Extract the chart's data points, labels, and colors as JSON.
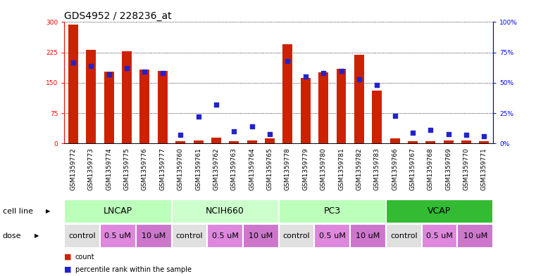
{
  "title": "GDS4952 / 228236_at",
  "samples": [
    "GSM1359772",
    "GSM1359773",
    "GSM1359774",
    "GSM1359775",
    "GSM1359776",
    "GSM1359777",
    "GSM1359760",
    "GSM1359761",
    "GSM1359762",
    "GSM1359763",
    "GSM1359764",
    "GSM1359765",
    "GSM1359778",
    "GSM1359779",
    "GSM1359780",
    "GSM1359781",
    "GSM1359782",
    "GSM1359783",
    "GSM1359766",
    "GSM1359767",
    "GSM1359768",
    "GSM1359769",
    "GSM1359770",
    "GSM1359771"
  ],
  "counts": [
    293,
    232,
    178,
    228,
    182,
    180,
    5,
    8,
    15,
    5,
    8,
    12,
    246,
    162,
    175,
    185,
    220,
    130,
    12,
    5,
    6,
    8,
    7,
    5
  ],
  "percentiles": [
    67,
    64,
    57,
    62,
    59,
    58,
    7,
    22,
    32,
    10,
    14,
    8,
    68,
    55,
    58,
    60,
    53,
    48,
    23,
    9,
    11,
    8,
    7,
    6
  ],
  "cell_lines": [
    {
      "label": "LNCAP",
      "start": 0,
      "end": 6,
      "color": "#bbffbb"
    },
    {
      "label": "NCIH660",
      "start": 6,
      "end": 12,
      "color": "#ccffcc"
    },
    {
      "label": "PC3",
      "start": 12,
      "end": 18,
      "color": "#bbffbb"
    },
    {
      "label": "VCAP",
      "start": 18,
      "end": 24,
      "color": "#33bb33"
    }
  ],
  "doses": [
    {
      "label": "control",
      "start": 0,
      "end": 2,
      "color": "#e8e8e8"
    },
    {
      "label": "0.5 uM",
      "start": 2,
      "end": 4,
      "color": "#dd88dd"
    },
    {
      "label": "10 uM",
      "start": 4,
      "end": 6,
      "color": "#dd88dd"
    },
    {
      "label": "control",
      "start": 6,
      "end": 8,
      "color": "#e8e8e8"
    },
    {
      "label": "0.5 uM",
      "start": 8,
      "end": 10,
      "color": "#dd88dd"
    },
    {
      "label": "10 uM",
      "start": 10,
      "end": 12,
      "color": "#dd88dd"
    },
    {
      "label": "control",
      "start": 12,
      "end": 14,
      "color": "#e8e8e8"
    },
    {
      "label": "0.5 uM",
      "start": 14,
      "end": 16,
      "color": "#dd88dd"
    },
    {
      "label": "10 uM",
      "start": 16,
      "end": 18,
      "color": "#dd88dd"
    },
    {
      "label": "control",
      "start": 18,
      "end": 20,
      "color": "#e8e8e8"
    },
    {
      "label": "0.5 uM",
      "start": 20,
      "end": 22,
      "color": "#dd88dd"
    },
    {
      "label": "10 uM",
      "start": 22,
      "end": 24,
      "color": "#dd88dd"
    }
  ],
  "bar_color": "#cc2200",
  "dot_color": "#2222cc",
  "left_ylim": [
    0,
    300
  ],
  "left_yticks": [
    0,
    75,
    150,
    225,
    300
  ],
  "right_ylim": [
    0,
    100
  ],
  "right_yticks": [
    0,
    25,
    50,
    75,
    100
  ],
  "right_yticklabels": [
    "0%",
    "25%",
    "50%",
    "75%",
    "100%"
  ],
  "bar_width": 0.55,
  "dot_size": 18,
  "title_fontsize": 10,
  "tick_fontsize": 6.5,
  "label_fontsize": 8,
  "cell_line_fontsize": 9,
  "dose_fontsize": 8
}
